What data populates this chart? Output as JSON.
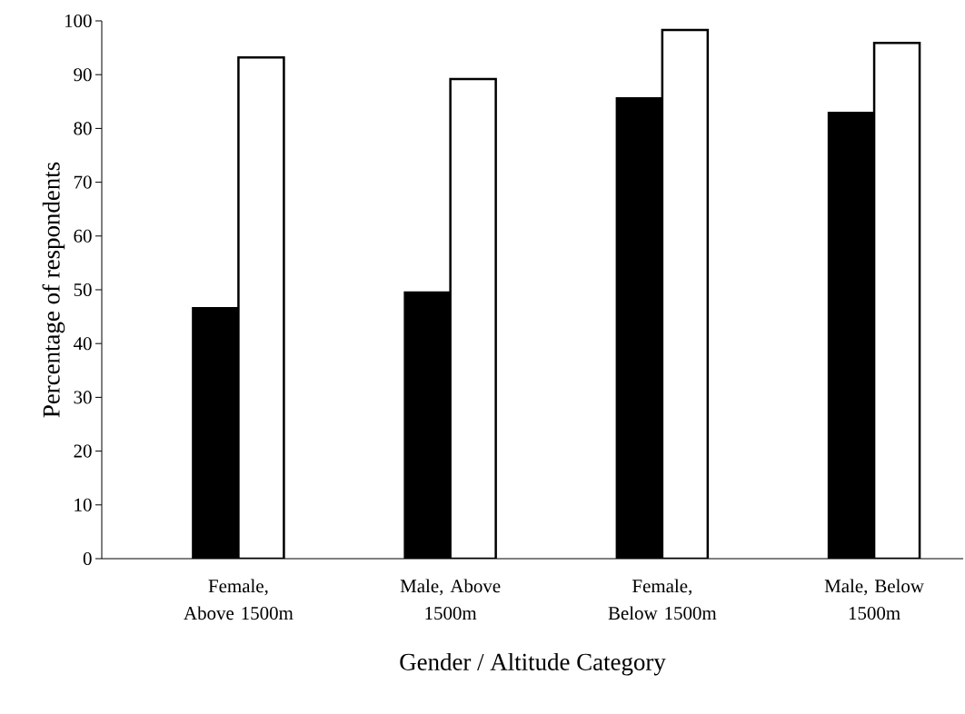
{
  "chart_data": {
    "type": "bar",
    "xlabel": "Gender  / Altitude Category",
    "ylabel": "Percentage of respondents",
    "categories": [
      "Female, Above 1500m",
      "Male, Above 1500m",
      "Female, Below 1500m",
      "Male, Below 1500m"
    ],
    "series": [
      {
        "color": "#000000",
        "values": [
          46.6,
          49.5,
          85.6,
          82.9
        ]
      },
      {
        "color": "#ffffff",
        "values": [
          93.2,
          89.2,
          98.3,
          95.9
        ]
      }
    ],
    "ylim": [
      0,
      100
    ],
    "yticks": [
      0,
      10,
      20,
      30,
      40,
      50,
      60,
      70,
      80,
      90,
      100
    ],
    "grid": false
  }
}
